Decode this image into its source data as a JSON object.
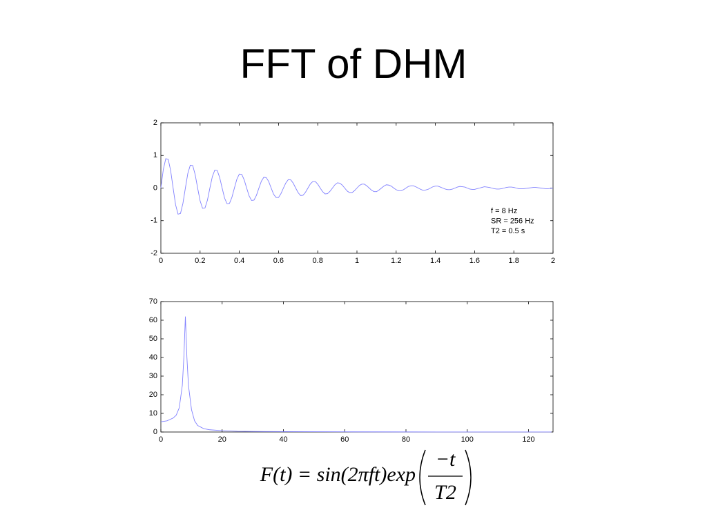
{
  "slide_title": "FFT of DHM",
  "chart_data": [
    {
      "type": "line",
      "color": "#8080ff",
      "xlim": [
        0,
        2
      ],
      "xticks": [
        0,
        0.2,
        0.4,
        0.6,
        0.8,
        1,
        1.2,
        1.4,
        1.6,
        1.8,
        2
      ],
      "ylim": [
        -2,
        2
      ],
      "yticks": [
        -2,
        -1,
        0,
        1,
        2
      ],
      "annotations": [
        "f = 8 Hz",
        "SR = 256 Hz",
        "T2 = 0.5 s"
      ],
      "x": [
        0,
        0.0125,
        0.025,
        0.0375,
        0.05,
        0.0625,
        0.075,
        0.0875,
        0.1,
        0.1125,
        0.125,
        0.1375,
        0.15,
        0.1625,
        0.175,
        0.1875,
        0.2,
        0.2125,
        0.225,
        0.2375,
        0.25,
        0.2625,
        0.275,
        0.2875,
        0.3,
        0.3125,
        0.325,
        0.3375,
        0.35,
        0.3625,
        0.375,
        0.3875,
        0.4,
        0.4125,
        0.425,
        0.4375,
        0.45,
        0.4625,
        0.475,
        0.4875,
        0.5,
        0.5125,
        0.525,
        0.5375,
        0.55,
        0.5625,
        0.575,
        0.5875,
        0.6,
        0.6125,
        0.625,
        0.6375,
        0.65,
        0.6625,
        0.675,
        0.6875,
        0.7,
        0.7125,
        0.725,
        0.7375,
        0.75,
        0.7625,
        0.775,
        0.7875,
        0.8,
        0.8125,
        0.825,
        0.8375,
        0.85,
        0.8625,
        0.875,
        0.8875,
        0.9,
        0.9125,
        0.925,
        0.9375,
        0.95,
        0.9625,
        0.975,
        0.9875,
        1,
        1.0125,
        1.025,
        1.0375,
        1.05,
        1.0625,
        1.075,
        1.0875,
        1.1,
        1.1125,
        1.125,
        1.1375,
        1.15,
        1.1625,
        1.175,
        1.1875,
        1.2,
        1.2125,
        1.225,
        1.2375,
        1.25,
        1.2625,
        1.275,
        1.2875,
        1.3,
        1.3125,
        1.325,
        1.3375,
        1.35,
        1.3625,
        1.375,
        1.3875,
        1.4,
        1.4125,
        1.425,
        1.4375,
        1.45,
        1.4625,
        1.475,
        1.4875,
        1.5,
        1.5125,
        1.525,
        1.5375,
        1.55,
        1.5625,
        1.575,
        1.5875,
        1.6,
        1.6125,
        1.625,
        1.6375,
        1.65,
        1.6625,
        1.675,
        1.6875,
        1.7,
        1.7125,
        1.725,
        1.7375,
        1.75,
        1.7625,
        1.775,
        1.7875,
        1.8,
        1.8125,
        1.825,
        1.8375,
        1.85,
        1.8625,
        1.875,
        1.8875,
        1.9,
        1.9125,
        1.925,
        1.9375,
        1.95,
        1.9625,
        1.975,
        1.9875,
        2
      ],
      "values": [
        0,
        0.57,
        0.9,
        0.88,
        0.53,
        0,
        -0.51,
        -0.8,
        -0.78,
        -0.47,
        0,
        0.45,
        0.7,
        0.69,
        0.41,
        0,
        -0.39,
        -0.62,
        -0.61,
        -0.37,
        0,
        0.35,
        0.55,
        0.54,
        0.32,
        0,
        -0.31,
        -0.48,
        -0.47,
        -0.28,
        0,
        0.27,
        0.43,
        0.42,
        0.25,
        0,
        -0.24,
        -0.38,
        -0.37,
        -0.22,
        0,
        0.21,
        0.33,
        0.32,
        0.2,
        0,
        -0.19,
        -0.29,
        -0.29,
        -0.17,
        0,
        0.16,
        0.26,
        0.25,
        0.15,
        0,
        -0.14,
        -0.23,
        -0.22,
        -0.13,
        0,
        0.13,
        0.2,
        0.2,
        0.12,
        0,
        -0.11,
        -0.18,
        -0.17,
        -0.1,
        0,
        0.1,
        0.16,
        0.15,
        0.09,
        0,
        -0.09,
        -0.14,
        -0.14,
        -0.08,
        0,
        0.08,
        0.12,
        0.12,
        0.07,
        0,
        -0.07,
        -0.11,
        -0.11,
        -0.06,
        0,
        0.06,
        0.1,
        0.09,
        0.06,
        0,
        -0.05,
        -0.08,
        -0.08,
        -0.05,
        0,
        0.05,
        0.07,
        0.07,
        0.04,
        0,
        -0.04,
        -0.07,
        -0.06,
        -0.04,
        0,
        0.04,
        0.06,
        0.06,
        0.03,
        0,
        -0.03,
        -0.05,
        -0.05,
        -0.03,
        0,
        0.03,
        0.05,
        0.04,
        0.03,
        0,
        -0.03,
        -0.04,
        -0.04,
        -0.02,
        0,
        0.02,
        0.04,
        0.03,
        0.02,
        0,
        -0.02,
        -0.03,
        -0.03,
        -0.02,
        0,
        0.02,
        0.03,
        0.03,
        0.02,
        0,
        -0.02,
        -0.02,
        -0.02,
        -0.01,
        0,
        0.01,
        0.02,
        0.02,
        0.01,
        0,
        -0.01,
        -0.02,
        -0.02,
        -0.01,
        0
      ]
    },
    {
      "type": "line",
      "color": "#8080ff",
      "xlim": [
        0,
        128
      ],
      "xticks": [
        0,
        20,
        40,
        60,
        80,
        100,
        120
      ],
      "ylim": [
        0,
        70
      ],
      "yticks": [
        0,
        10,
        20,
        30,
        40,
        50,
        60,
        70
      ],
      "x": [
        0,
        2,
        4,
        5,
        6,
        7,
        7.5,
        8,
        8.5,
        9,
        10,
        11,
        12,
        14,
        16,
        20,
        25,
        30,
        40,
        60,
        80,
        100,
        127.5
      ],
      "values": [
        5.5,
        6,
        7.5,
        9,
        13,
        25,
        40,
        62,
        40,
        25,
        12,
        6,
        3.5,
        1.8,
        1.2,
        0.7,
        0.4,
        0.3,
        0.2,
        0.1,
        0.05,
        0.03,
        0.02
      ]
    }
  ],
  "formula": {
    "lhs": "F(t) = sin(2πft)exp",
    "numerator": "−t",
    "denominator": "T2"
  }
}
